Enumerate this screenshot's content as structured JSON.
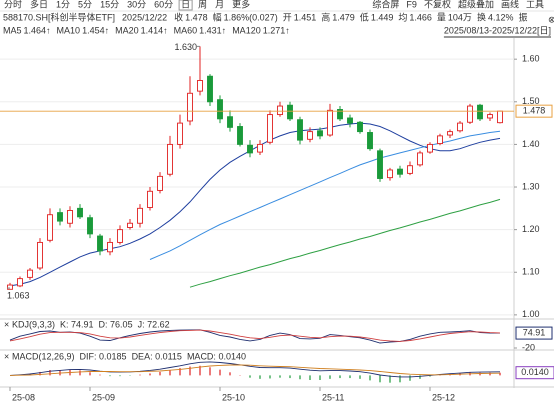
{
  "chart_data": {
    "type": "candlestick",
    "toolbar_left": [
      "分时",
      "多日",
      "1分",
      "5分",
      "15分",
      "30分",
      "60分",
      "日",
      "周",
      "月",
      "更多"
    ],
    "toolbar_selected": "日",
    "toolbar_right": [
      "综合屏",
      "F9",
      "不复权",
      "超级叠加",
      "画线",
      "工具"
    ],
    "quote": [
      {
        "text": "588170.SH[科创半导体ETF]"
      },
      {
        "text": "2025/12/22"
      },
      {
        "text": "收",
        "value": "1.478"
      },
      {
        "text": "幅",
        "value": "1.86%(0.027)"
      },
      {
        "text": "开",
        "value": "1.451"
      },
      {
        "text": "高",
        "value": "1.479"
      },
      {
        "text": "低",
        "value": "1.449"
      },
      {
        "text": "均",
        "value": "1.466"
      },
      {
        "text": "量",
        "value": "104万"
      },
      {
        "text": "换",
        "value": "4.12%"
      },
      {
        "text": "振"
      }
    ],
    "date_range": "2025/08/13-2025/12/22[日]",
    "ma": [
      {
        "name": "MA5",
        "label": "1.464↑",
        "color": "#222222"
      },
      {
        "name": "MA10",
        "label": "1.454↑",
        "color": "#e39b28"
      },
      {
        "name": "MA20",
        "label": "1.414↑",
        "color": "#1f3f9f",
        "values": [
          1.068,
          1.072,
          1.078,
          1.088,
          1.1,
          1.112,
          1.124,
          1.136,
          1.145,
          1.15,
          1.155,
          1.16,
          1.168,
          1.178,
          1.19,
          1.205,
          1.222,
          1.242,
          1.265,
          1.292,
          1.318,
          1.34,
          1.358,
          1.372,
          1.385,
          1.398,
          1.41,
          1.42,
          1.428,
          1.432,
          1.434,
          1.436,
          1.44,
          1.445,
          1.448,
          1.45,
          1.448,
          1.442,
          1.432,
          1.42,
          1.408,
          1.398,
          1.39,
          1.385,
          1.385,
          1.39,
          1.398,
          1.405,
          1.41,
          1.414
        ]
      },
      {
        "name": "MA60",
        "label": "1.431↑",
        "color": "#3a8de0",
        "values": [
          null,
          null,
          null,
          null,
          null,
          null,
          null,
          null,
          null,
          null,
          null,
          null,
          null,
          null,
          1.13,
          1.14,
          1.15,
          1.162,
          1.175,
          1.188,
          1.2,
          1.212,
          1.222,
          1.232,
          1.242,
          1.252,
          1.262,
          1.272,
          1.282,
          1.292,
          1.302,
          1.312,
          1.322,
          1.332,
          1.342,
          1.352,
          1.36,
          1.368,
          1.374,
          1.38,
          1.386,
          1.392,
          1.398,
          1.403,
          1.408,
          1.414,
          1.42,
          1.424,
          1.428,
          1.431
        ]
      },
      {
        "name": "MA120",
        "label": "1.271↑",
        "color": "#2ea043",
        "values": [
          null,
          null,
          null,
          null,
          null,
          null,
          null,
          null,
          null,
          null,
          null,
          null,
          null,
          null,
          null,
          null,
          null,
          null,
          1.065,
          1.072,
          1.078,
          1.085,
          1.092,
          1.098,
          1.105,
          1.112,
          1.118,
          1.125,
          1.132,
          1.138,
          1.145,
          1.151,
          1.158,
          1.165,
          1.171,
          1.178,
          1.184,
          1.191,
          1.198,
          1.204,
          1.211,
          1.218,
          1.224,
          1.231,
          1.238,
          1.244,
          1.251,
          1.258,
          1.264,
          1.271
        ]
      }
    ],
    "categories": [
      "25-08",
      null,
      null,
      null,
      null,
      null,
      null,
      null,
      "25-09",
      null,
      null,
      null,
      null,
      null,
      null,
      null,
      null,
      null,
      null,
      null,
      null,
      "25-10",
      null,
      null,
      null,
      null,
      null,
      null,
      null,
      null,
      null,
      "25-11",
      null,
      null,
      null,
      null,
      null,
      null,
      null,
      null,
      null,
      null,
      "25-12",
      null,
      null,
      null,
      null,
      null,
      null,
      null
    ],
    "open": [
      1.06,
      1.068,
      1.088,
      1.11,
      1.175,
      1.24,
      1.215,
      1.25,
      1.228,
      1.185,
      1.148,
      1.17,
      1.205,
      1.215,
      1.252,
      1.292,
      1.33,
      1.4,
      1.455,
      1.525,
      1.56,
      1.505,
      1.465,
      1.442,
      1.398,
      1.382,
      1.405,
      1.47,
      1.492,
      1.458,
      1.412,
      1.432,
      1.422,
      1.482,
      1.462,
      1.452,
      1.428,
      1.385,
      1.322,
      1.342,
      1.332,
      1.352,
      1.382,
      1.402,
      1.422,
      1.432,
      1.452,
      1.492,
      1.462,
      1.451
    ],
    "high": [
      1.075,
      1.09,
      1.11,
      1.18,
      1.25,
      1.25,
      1.255,
      1.26,
      1.235,
      1.19,
      1.18,
      1.21,
      1.225,
      1.26,
      1.3,
      1.335,
      1.42,
      1.47,
      1.56,
      1.63,
      1.565,
      1.515,
      1.48,
      1.45,
      1.41,
      1.41,
      1.48,
      1.5,
      1.5,
      1.465,
      1.44,
      1.44,
      1.495,
      1.49,
      1.47,
      1.455,
      1.435,
      1.39,
      1.345,
      1.35,
      1.36,
      1.385,
      1.405,
      1.425,
      1.435,
      1.455,
      1.495,
      1.495,
      1.475,
      1.479
    ],
    "low": [
      1.063,
      1.065,
      1.082,
      1.105,
      1.17,
      1.21,
      1.205,
      1.225,
      1.18,
      1.14,
      1.14,
      1.165,
      1.2,
      1.205,
      1.245,
      1.285,
      1.325,
      1.39,
      1.445,
      1.515,
      1.49,
      1.45,
      1.43,
      1.395,
      1.37,
      1.375,
      1.4,
      1.465,
      1.455,
      1.4,
      1.405,
      1.412,
      1.418,
      1.455,
      1.44,
      1.425,
      1.385,
      1.312,
      1.315,
      1.322,
      1.328,
      1.348,
      1.378,
      1.398,
      1.415,
      1.428,
      1.448,
      1.455,
      1.455,
      1.449
    ],
    "close": [
      1.07,
      1.085,
      1.105,
      1.17,
      1.235,
      1.22,
      1.245,
      1.23,
      1.19,
      1.15,
      1.17,
      1.2,
      1.215,
      1.25,
      1.29,
      1.325,
      1.4,
      1.45,
      1.52,
      1.55,
      1.5,
      1.46,
      1.44,
      1.4,
      1.38,
      1.4,
      1.47,
      1.49,
      1.46,
      1.41,
      1.43,
      1.42,
      1.48,
      1.46,
      1.45,
      1.43,
      1.39,
      1.32,
      1.34,
      1.33,
      1.35,
      1.38,
      1.4,
      1.42,
      1.43,
      1.45,
      1.49,
      1.46,
      1.47,
      1.478
    ],
    "up_color": "#e02020",
    "down_color": "#1a9a3a",
    "ylim": [
      0.995,
      1.645
    ],
    "yticks": [
      {
        "value": 1.0,
        "label": "1.00"
      },
      {
        "value": 1.1,
        "label": "1.10"
      },
      {
        "value": 1.2,
        "label": "1.20"
      },
      {
        "value": 1.3,
        "label": "1.30"
      },
      {
        "value": 1.4,
        "label": "1.40"
      },
      {
        "value": 1.5,
        "label": "1.50"
      },
      {
        "value": 1.6,
        "label": "1.60"
      }
    ],
    "grid": true,
    "last_price": 1.478,
    "annotations": [
      {
        "value": 1.63,
        "label": "1.630",
        "at": "high"
      },
      {
        "value": 1.063,
        "label": "1.063",
        "at": "low"
      }
    ],
    "kdj": {
      "title": "KDJ(9,3,3)",
      "labels": [
        {
          "text": "K: 74.91",
          "color": "#1f2f6f"
        },
        {
          "text": "D: 76.05",
          "color": "#d04040"
        },
        {
          "text": "J: 72.62",
          "color": "#8a3fc0"
        }
      ],
      "ylim": [
        -20,
        120
      ],
      "yticks": [
        -20
      ],
      "series": [
        {
          "name": "K",
          "color": "#1f2f6f",
          "values": [
            30,
            55,
            70,
            85,
            88,
            80,
            82,
            75,
            55,
            30,
            28,
            45,
            60,
            72,
            82,
            88,
            92,
            94,
            95,
            96,
            80,
            60,
            50,
            35,
            25,
            35,
            60,
            75,
            65,
            40,
            38,
            42,
            65,
            60,
            52,
            45,
            30,
            12,
            18,
            22,
            35,
            55,
            70,
            80,
            82,
            85,
            90,
            78,
            75,
            74.91
          ]
        },
        {
          "name": "D",
          "color": "#d04040",
          "values": [
            25,
            38,
            52,
            68,
            78,
            80,
            80,
            78,
            70,
            55,
            45,
            43,
            50,
            60,
            70,
            78,
            85,
            90,
            92,
            94,
            88,
            78,
            68,
            55,
            45,
            40,
            48,
            58,
            62,
            55,
            48,
            45,
            52,
            56,
            55,
            50,
            42,
            30,
            25,
            22,
            28,
            38,
            50,
            62,
            72,
            78,
            84,
            82,
            78,
            76.05
          ]
        }
      ]
    },
    "macd": {
      "title": "MACD(12,26,9)",
      "labels": [
        {
          "text": "DIF: 0.0185",
          "color": "#1f2f6f"
        },
        {
          "text": "DEA: 0.0115",
          "color": "#d08020"
        },
        {
          "text": "MACD: 0.0140",
          "color": "#8a3fc0"
        }
      ],
      "ylim": [
        -0.05,
        0.08
      ],
      "last_label": {
        "value": 0.014,
        "label": "0.0140"
      },
      "histogram": [
        0,
        0.004,
        0.01,
        0.018,
        0.028,
        0.028,
        0.03,
        0.026,
        0.016,
        0.004,
        -0.004,
        -0.004,
        -0.002,
        0.004,
        0.01,
        0.018,
        0.028,
        0.038,
        0.046,
        0.05,
        0.042,
        0.03,
        0.016,
        0.002,
        -0.012,
        -0.018,
        -0.016,
        -0.012,
        -0.014,
        -0.02,
        -0.024,
        -0.024,
        -0.018,
        -0.014,
        -0.014,
        -0.018,
        -0.026,
        -0.036,
        -0.038,
        -0.036,
        -0.028,
        -0.018,
        -0.006,
        0.004,
        0.01,
        0.012,
        0.016,
        0.014,
        0.014,
        0.014
      ],
      "series": [
        {
          "name": "DIF",
          "color": "#1f2f6f",
          "values": [
            0,
            0.003,
            0.007,
            0.014,
            0.022,
            0.026,
            0.03,
            0.031,
            0.028,
            0.022,
            0.018,
            0.017,
            0.018,
            0.021,
            0.026,
            0.032,
            0.041,
            0.05,
            0.06,
            0.068,
            0.07,
            0.067,
            0.062,
            0.055,
            0.047,
            0.041,
            0.04,
            0.04,
            0.038,
            0.032,
            0.027,
            0.024,
            0.025,
            0.025,
            0.023,
            0.019,
            0.012,
            0.002,
            -0.004,
            -0.008,
            -0.008,
            -0.005,
            0,
            0.005,
            0.009,
            0.012,
            0.016,
            0.017,
            0.018,
            0.0185
          ]
        },
        {
          "name": "DEA",
          "color": "#d08020",
          "values": [
            0,
            0.001,
            0.002,
            0.005,
            0.008,
            0.012,
            0.015,
            0.018,
            0.02,
            0.02,
            0.02,
            0.019,
            0.019,
            0.019,
            0.021,
            0.023,
            0.027,
            0.031,
            0.037,
            0.043,
            0.049,
            0.052,
            0.054,
            0.054,
            0.053,
            0.05,
            0.048,
            0.046,
            0.045,
            0.042,
            0.039,
            0.036,
            0.034,
            0.032,
            0.03,
            0.028,
            0.025,
            0.02,
            0.015,
            0.01,
            0.006,
            0.004,
            0.003,
            0.003,
            0.004,
            0.006,
            0.008,
            0.01,
            0.011,
            0.0115
          ]
        }
      ]
    }
  }
}
